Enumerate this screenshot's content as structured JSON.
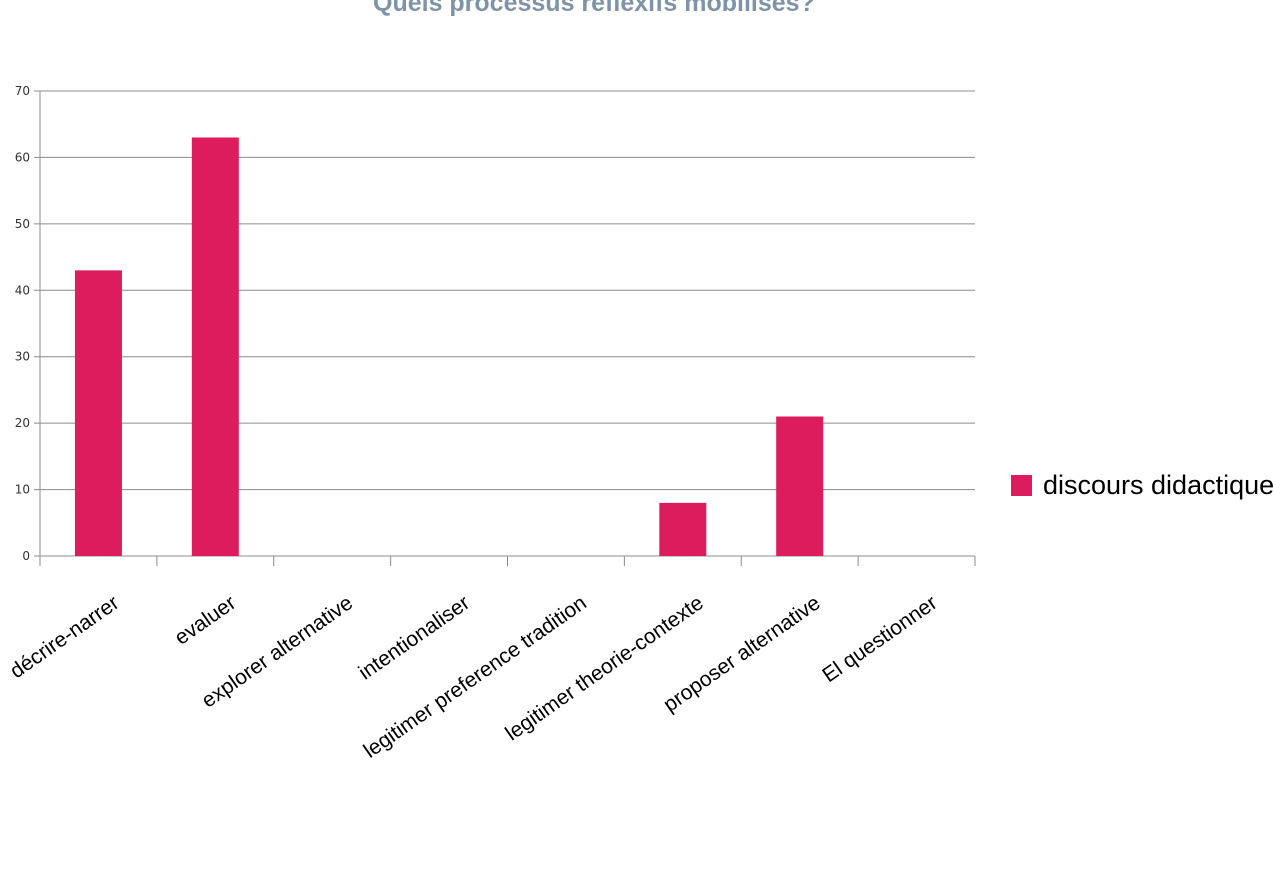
{
  "chart_data": {
    "type": "bar",
    "title": "Quels processus réflexifs mobilisés?",
    "categories": [
      "décrire-narrer",
      "evaluer",
      "explorer alternative",
      "intentionaliser",
      "legitimer preference tradition",
      "legitimer theorie-contexte",
      "proposer alternative",
      "El questionner"
    ],
    "series": [
      {
        "name": "discours didactique",
        "values": [
          43,
          63,
          0,
          0,
          0,
          8,
          21,
          0
        ],
        "color": "#dc1c5c"
      }
    ],
    "yticks": [
      "0",
      "10",
      "20",
      "30",
      "40",
      "50",
      "60",
      "70"
    ],
    "ylim": [
      0,
      70
    ],
    "grid": true,
    "legend": "right"
  }
}
